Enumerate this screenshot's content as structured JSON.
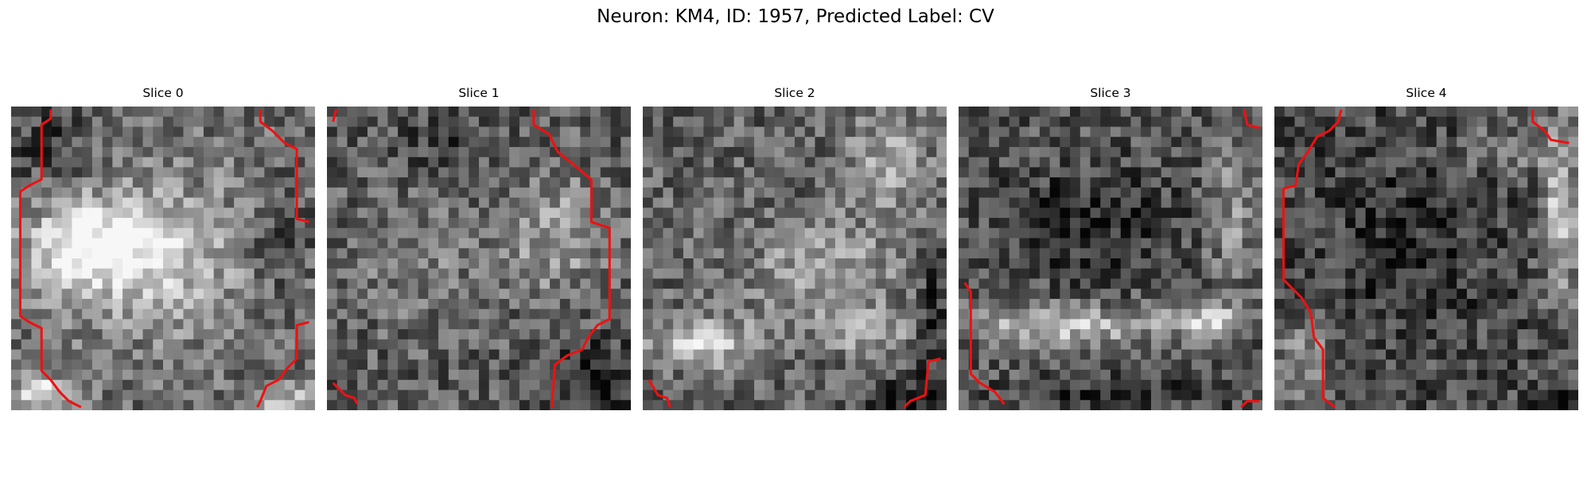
{
  "figure": {
    "title": "Neuron: KM4, ID: 1957, Predicted Label: CV",
    "contour_color": "#ee1111",
    "panels": [
      {
        "title": "Slice 0",
        "pattern": "bright blob in left-center, darker upper-left, dark lower band with light bottom-left corner",
        "blobs": [
          [
            0.28,
            0.46,
            0.22,
            0.14,
            0.9
          ],
          [
            0.5,
            0.5,
            0.32,
            0.26,
            0.45
          ],
          [
            0.1,
            0.95,
            0.1,
            0.06,
            0.8
          ],
          [
            0.9,
            0.97,
            0.1,
            0.05,
            0.6
          ]
        ],
        "base": 0.42,
        "dark": [
          [
            0.12,
            0.12,
            0.14,
            0.14,
            0.25
          ],
          [
            0.88,
            0.45,
            0.12,
            0.2,
            0.2
          ]
        ],
        "seed": 11
      },
      {
        "title": "Slice 1",
        "pattern": "noisy texture, lighter right-center region, dark lower-right corner",
        "blobs": [
          [
            0.75,
            0.42,
            0.18,
            0.2,
            0.45
          ],
          [
            0.3,
            0.5,
            0.2,
            0.2,
            0.25
          ]
        ],
        "base": 0.36,
        "dark": [
          [
            0.88,
            0.9,
            0.14,
            0.12,
            0.35
          ],
          [
            0.4,
            0.12,
            0.18,
            0.1,
            0.15
          ]
        ],
        "seed": 23
      },
      {
        "title": "Slice 2",
        "pattern": "light ring-like structure with bright blob at bottom-left, dark lower-right corner",
        "blobs": [
          [
            0.2,
            0.78,
            0.16,
            0.08,
            0.8
          ],
          [
            0.6,
            0.55,
            0.28,
            0.16,
            0.45
          ],
          [
            0.8,
            0.2,
            0.14,
            0.16,
            0.5
          ],
          [
            0.75,
            0.75,
            0.14,
            0.06,
            0.45
          ]
        ],
        "base": 0.38,
        "dark": [
          [
            0.95,
            0.7,
            0.06,
            0.25,
            0.3
          ],
          [
            0.85,
            0.96,
            0.14,
            0.06,
            0.35
          ]
        ],
        "seed": 37
      },
      {
        "title": "Slice 3",
        "pattern": "dark interior with bright arc along lower band and right side",
        "blobs": [
          [
            0.35,
            0.72,
            0.3,
            0.06,
            0.75
          ],
          [
            0.82,
            0.7,
            0.14,
            0.06,
            0.7
          ],
          [
            0.9,
            0.35,
            0.08,
            0.22,
            0.4
          ]
        ],
        "base": 0.34,
        "dark": [
          [
            0.45,
            0.38,
            0.28,
            0.18,
            0.25
          ],
          [
            0.5,
            0.95,
            0.3,
            0.06,
            0.25
          ]
        ],
        "seed": 53
      },
      {
        "title": "Slice 4",
        "pattern": "dark interior with bright crescent along right edge",
        "blobs": [
          [
            0.94,
            0.35,
            0.06,
            0.3,
            0.8
          ],
          [
            0.1,
            0.85,
            0.1,
            0.12,
            0.45
          ],
          [
            0.75,
            0.15,
            0.14,
            0.08,
            0.35
          ]
        ],
        "base": 0.3,
        "dark": [
          [
            0.45,
            0.45,
            0.3,
            0.3,
            0.15
          ],
          [
            0.95,
            0.97,
            0.1,
            0.05,
            0.3
          ]
        ],
        "seed": 71
      }
    ],
    "contours": [
      [
        [
          [
            0.13,
            0.01
          ],
          [
            0.13,
            0.04
          ],
          [
            0.1,
            0.06
          ],
          [
            0.1,
            0.24
          ],
          [
            0.06,
            0.26
          ],
          [
            0.03,
            0.28
          ],
          [
            0.03,
            0.69
          ],
          [
            0.06,
            0.71
          ],
          [
            0.1,
            0.73
          ],
          [
            0.1,
            0.87
          ],
          [
            0.13,
            0.9
          ],
          [
            0.16,
            0.94
          ],
          [
            0.19,
            0.97
          ],
          [
            0.23,
            0.99
          ]
        ],
        [
          [
            0.82,
            0.01
          ],
          [
            0.82,
            0.05
          ],
          [
            0.86,
            0.08
          ],
          [
            0.9,
            0.12
          ],
          [
            0.94,
            0.14
          ],
          [
            0.94,
            0.37
          ],
          [
            0.98,
            0.38
          ]
        ],
        [
          [
            0.98,
            0.71
          ],
          [
            0.94,
            0.72
          ],
          [
            0.94,
            0.83
          ],
          [
            0.91,
            0.86
          ],
          [
            0.88,
            0.9
          ],
          [
            0.84,
            0.92
          ],
          [
            0.82,
            0.97
          ],
          [
            0.81,
            0.99
          ]
        ]
      ],
      [
        [
          [
            0.03,
            0.01
          ],
          [
            0.02,
            0.05
          ]
        ],
        [
          [
            0.68,
            0.01
          ],
          [
            0.68,
            0.06
          ],
          [
            0.73,
            0.09
          ],
          [
            0.76,
            0.15
          ],
          [
            0.81,
            0.19
          ],
          [
            0.87,
            0.24
          ],
          [
            0.87,
            0.38
          ],
          [
            0.93,
            0.4
          ],
          [
            0.93,
            0.7
          ],
          [
            0.89,
            0.72
          ],
          [
            0.86,
            0.76
          ],
          [
            0.84,
            0.8
          ],
          [
            0.79,
            0.82
          ],
          [
            0.75,
            0.85
          ],
          [
            0.74,
            0.99
          ]
        ],
        [
          [
            0.02,
            0.91
          ],
          [
            0.06,
            0.95
          ],
          [
            0.09,
            0.96
          ],
          [
            0.1,
            0.98
          ]
        ]
      ],
      [
        [
          [
            0.02,
            0.9
          ],
          [
            0.05,
            0.95
          ],
          [
            0.08,
            0.96
          ],
          [
            0.09,
            0.99
          ]
        ],
        [
          [
            0.98,
            0.83
          ],
          [
            0.94,
            0.84
          ],
          [
            0.93,
            0.95
          ],
          [
            0.88,
            0.97
          ],
          [
            0.86,
            0.99
          ]
        ]
      ],
      [
        [
          [
            0.94,
            0.01
          ],
          [
            0.95,
            0.06
          ],
          [
            0.99,
            0.07
          ]
        ],
        [
          [
            0.02,
            0.58
          ],
          [
            0.04,
            0.61
          ],
          [
            0.04,
            0.88
          ],
          [
            0.07,
            0.91
          ],
          [
            0.12,
            0.94
          ],
          [
            0.15,
            0.98
          ]
        ],
        [
          [
            0.93,
            0.99
          ],
          [
            0.95,
            0.97
          ],
          [
            0.99,
            0.97
          ]
        ]
      ],
      [
        [
          [
            0.22,
            0.01
          ],
          [
            0.21,
            0.05
          ],
          [
            0.18,
            0.08
          ],
          [
            0.14,
            0.1
          ],
          [
            0.11,
            0.15
          ],
          [
            0.08,
            0.19
          ],
          [
            0.07,
            0.26
          ],
          [
            0.03,
            0.27
          ],
          [
            0.03,
            0.57
          ],
          [
            0.06,
            0.6
          ],
          [
            0.09,
            0.63
          ],
          [
            0.12,
            0.68
          ],
          [
            0.13,
            0.76
          ],
          [
            0.16,
            0.8
          ],
          [
            0.16,
            0.96
          ],
          [
            0.2,
            0.99
          ]
        ],
        [
          [
            0.85,
            0.01
          ],
          [
            0.85,
            0.05
          ],
          [
            0.89,
            0.08
          ],
          [
            0.91,
            0.11
          ],
          [
            0.97,
            0.12
          ]
        ]
      ]
    ]
  }
}
